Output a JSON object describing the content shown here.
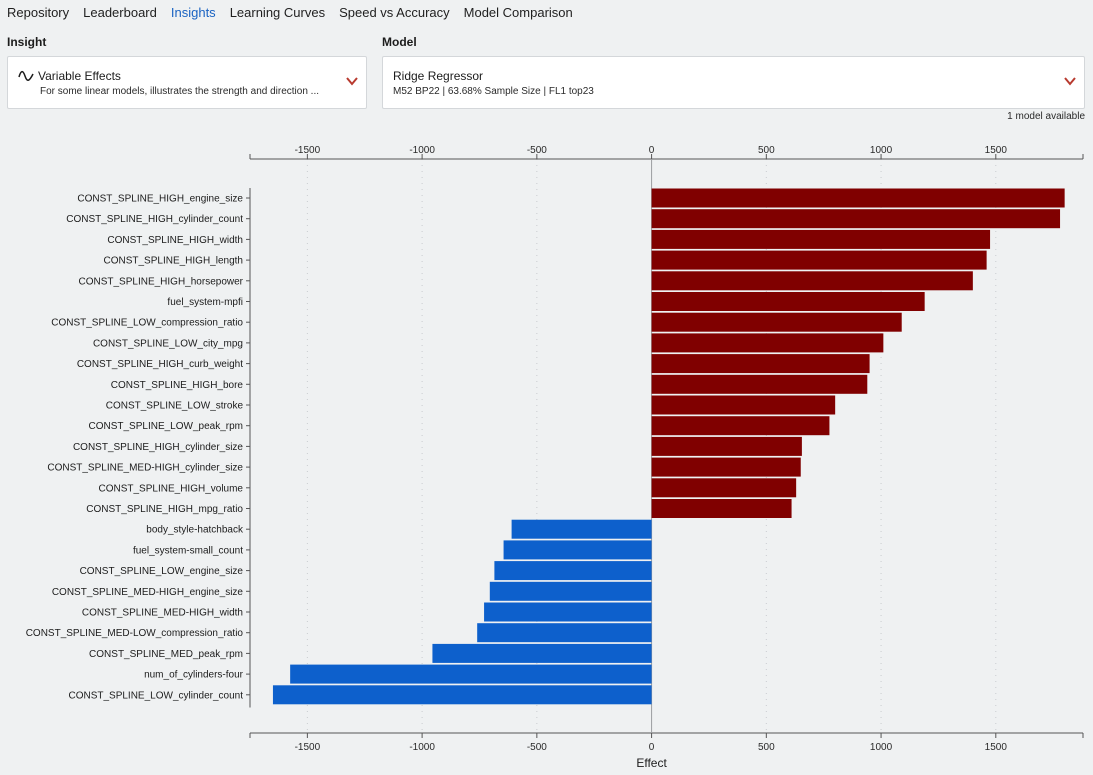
{
  "nav": {
    "tabs": [
      {
        "label": "Repository",
        "active": false
      },
      {
        "label": "Leaderboard",
        "active": false
      },
      {
        "label": "Insights",
        "active": true
      },
      {
        "label": "Learning Curves",
        "active": false
      },
      {
        "label": "Speed vs Accuracy",
        "active": false
      },
      {
        "label": "Model Comparison",
        "active": false
      }
    ]
  },
  "insight": {
    "label": "Insight",
    "title": "Variable Effects",
    "description": "For some linear models, illustrates the strength and direction ...",
    "icon": "wave-icon"
  },
  "model": {
    "label": "Model",
    "title": "Ridge Regressor",
    "description": "M52 BP22 | 63.68% Sample Size | FL1 top23",
    "available": "1 model available"
  },
  "colors": {
    "positive": "#800000",
    "negative": "#0d60cc",
    "active_tab": "#1a63c2",
    "chevron": "#b83a2f"
  },
  "chart_data": {
    "type": "bar",
    "orientation": "horizontal",
    "xlabel": "Effect",
    "ylabel": "",
    "xlim": [
      -1750,
      1880
    ],
    "xticks": [
      -1500,
      -1000,
      -500,
      0,
      500,
      1000,
      1500
    ],
    "grid": true,
    "categories": [
      "CONST_SPLINE_HIGH_engine_size",
      "CONST_SPLINE_HIGH_cylinder_count",
      "CONST_SPLINE_HIGH_width",
      "CONST_SPLINE_HIGH_length",
      "CONST_SPLINE_HIGH_horsepower",
      "fuel_system-mpfi",
      "CONST_SPLINE_LOW_compression_ratio",
      "CONST_SPLINE_LOW_city_mpg",
      "CONST_SPLINE_HIGH_curb_weight",
      "CONST_SPLINE_HIGH_bore",
      "CONST_SPLINE_LOW_stroke",
      "CONST_SPLINE_LOW_peak_rpm",
      "CONST_SPLINE_HIGH_cylinder_size",
      "CONST_SPLINE_MED-HIGH_cylinder_size",
      "CONST_SPLINE_HIGH_volume",
      "CONST_SPLINE_HIGH_mpg_ratio",
      "body_style-hatchback",
      "fuel_system-small_count",
      "CONST_SPLINE_LOW_engine_size",
      "CONST_SPLINE_MED-HIGH_engine_size",
      "CONST_SPLINE_MED-HIGH_width",
      "CONST_SPLINE_MED-LOW_compression_ratio",
      "CONST_SPLINE_MED_peak_rpm",
      "num_of_cylinders-four",
      "CONST_SPLINE_LOW_cylinder_count"
    ],
    "values": [
      1800,
      1780,
      1475,
      1460,
      1400,
      1190,
      1090,
      1010,
      950,
      940,
      800,
      775,
      655,
      650,
      630,
      610,
      -610,
      -645,
      -685,
      -705,
      -730,
      -760,
      -955,
      -1575,
      -1650
    ]
  }
}
